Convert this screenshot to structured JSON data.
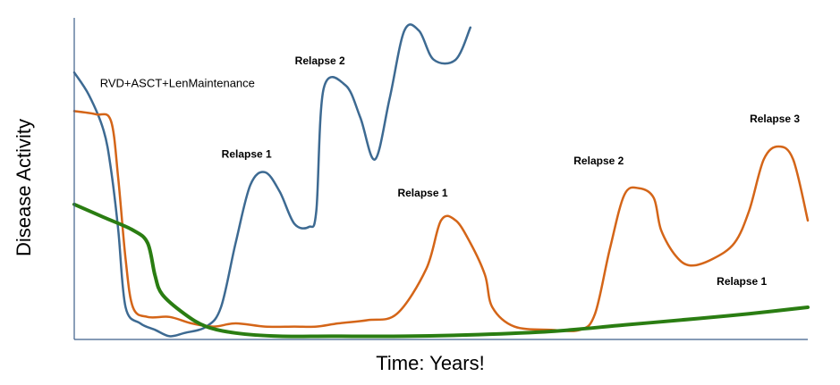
{
  "chart_data": {
    "type": "line",
    "title": "",
    "xlabel": "Time: Years!",
    "ylabel": "Disease Activity",
    "xlim": [
      0,
      100
    ],
    "ylim": [
      0,
      100
    ],
    "grid": false,
    "legend": "none",
    "series": [
      {
        "color": "#3d6a92",
        "stroke_width": 2.5,
        "points": [
          [
            0,
            83
          ],
          [
            2,
            76
          ],
          [
            4,
            65
          ],
          [
            5,
            53
          ],
          [
            6,
            34
          ],
          [
            7,
            10
          ],
          [
            9,
            5
          ],
          [
            11,
            3
          ],
          [
            13,
            1
          ],
          [
            15,
            2
          ],
          [
            18,
            4
          ],
          [
            20,
            10
          ],
          [
            22,
            30
          ],
          [
            24,
            48
          ],
          [
            26,
            52
          ],
          [
            28,
            46
          ],
          [
            30,
            36
          ],
          [
            32,
            35
          ],
          [
            33,
            40
          ],
          [
            34,
            78
          ],
          [
            37,
            79
          ],
          [
            39,
            69
          ],
          [
            41,
            56
          ],
          [
            43,
            75
          ],
          [
            45,
            96
          ],
          [
            47,
            96
          ],
          [
            49,
            87
          ],
          [
            52,
            87
          ],
          [
            54,
            97
          ]
        ]
      },
      {
        "color": "#d46518",
        "stroke_width": 2.5,
        "points": [
          [
            0,
            71
          ],
          [
            3,
            70
          ],
          [
            5,
            68
          ],
          [
            6,
            50
          ],
          [
            7,
            25
          ],
          [
            8,
            10
          ],
          [
            10,
            7
          ],
          [
            13,
            7
          ],
          [
            16,
            5
          ],
          [
            19,
            4
          ],
          [
            22,
            5
          ],
          [
            26,
            4
          ],
          [
            30,
            4
          ],
          [
            33,
            4
          ],
          [
            36,
            5
          ],
          [
            40,
            6
          ],
          [
            44,
            8
          ],
          [
            48,
            22
          ],
          [
            50,
            37
          ],
          [
            52,
            37
          ],
          [
            54,
            30
          ],
          [
            56,
            20
          ],
          [
            57,
            10
          ],
          [
            60,
            4
          ],
          [
            65,
            3
          ],
          [
            69,
            3
          ],
          [
            71,
            8
          ],
          [
            73,
            28
          ],
          [
            75,
            45
          ],
          [
            77,
            47
          ],
          [
            79,
            44
          ],
          [
            80,
            34
          ],
          [
            82,
            26
          ],
          [
            84,
            23
          ],
          [
            87,
            25
          ],
          [
            90,
            30
          ],
          [
            92,
            40
          ],
          [
            94,
            56
          ],
          [
            96,
            60
          ],
          [
            98,
            56
          ],
          [
            100,
            37
          ]
        ]
      },
      {
        "color": "#2a7d12",
        "stroke_width": 4,
        "points": [
          [
            0,
            42
          ],
          [
            4,
            38
          ],
          [
            8,
            34
          ],
          [
            10,
            30
          ],
          [
            11,
            20
          ],
          [
            12,
            14
          ],
          [
            15,
            8
          ],
          [
            18,
            4
          ],
          [
            22,
            2
          ],
          [
            28,
            1
          ],
          [
            35,
            1
          ],
          [
            45,
            1
          ],
          [
            55,
            1.5
          ],
          [
            65,
            2.5
          ],
          [
            75,
            4.5
          ],
          [
            85,
            6.5
          ],
          [
            92,
            8
          ],
          [
            100,
            10
          ]
        ]
      }
    ],
    "annotations": [
      {
        "text": "RVD+ASCT+LenMaintenance",
        "x": 3.5,
        "y": 78.5,
        "weight": "normal"
      },
      {
        "text": "Relapse 2",
        "x": 33.5,
        "y": 85.5,
        "weight": "bold"
      },
      {
        "text": "Relapse 1",
        "x": 23.5,
        "y": 56.5,
        "weight": "bold"
      },
      {
        "text": "Relapse 1",
        "x": 47.5,
        "y": 44.5,
        "weight": "bold"
      },
      {
        "text": "Relapse 2",
        "x": 71.5,
        "y": 54.5,
        "weight": "bold"
      },
      {
        "text": "Relapse 3",
        "x": 95.5,
        "y": 67.5,
        "weight": "bold"
      },
      {
        "text": "Relapse 1",
        "x": 91,
        "y": 17,
        "weight": "bold"
      }
    ]
  }
}
